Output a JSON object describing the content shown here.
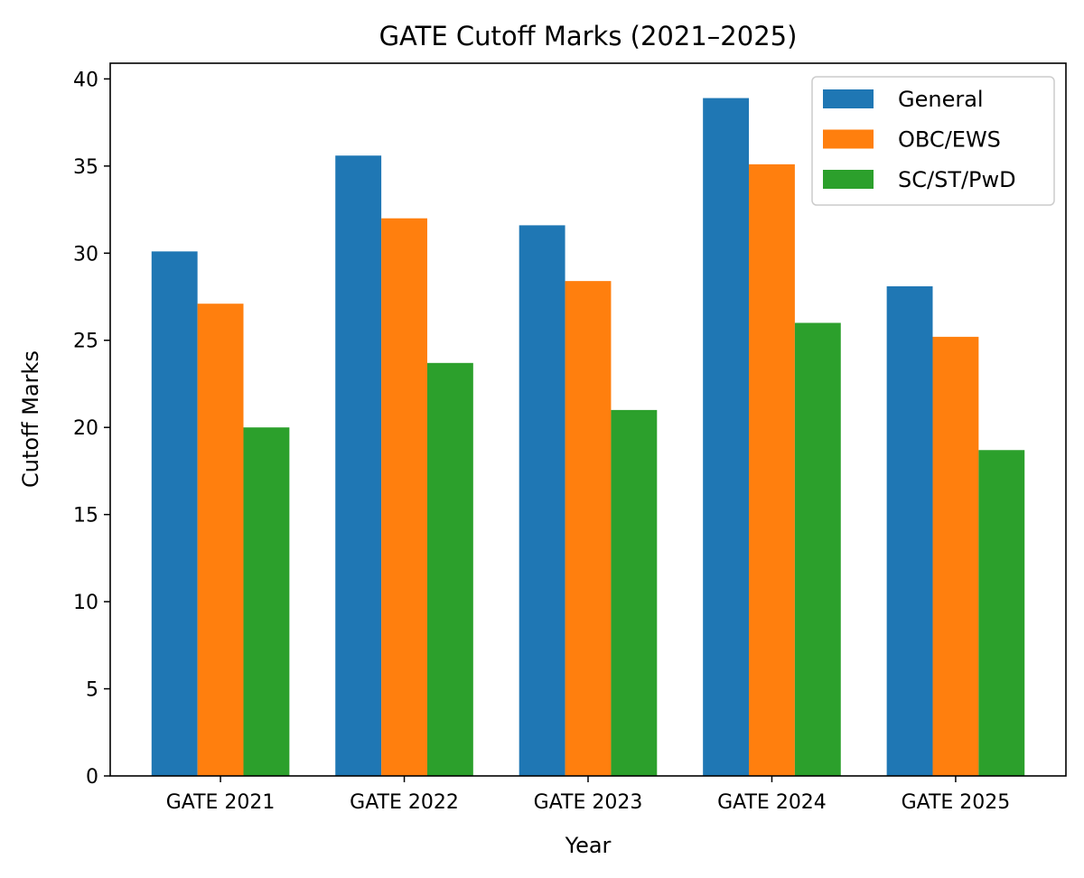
{
  "chart_data": {
    "type": "bar",
    "title": "GATE Cutoff Marks (2021–2025)",
    "xlabel": "Year",
    "ylabel": "Cutoff Marks",
    "categories": [
      "GATE 2021",
      "GATE 2022",
      "GATE 2023",
      "GATE 2024",
      "GATE 2025"
    ],
    "series": [
      {
        "name": "General",
        "color": "#1f77b4",
        "values": [
          30.1,
          35.6,
          31.6,
          38.9,
          28.1
        ]
      },
      {
        "name": "OBC/EWS",
        "color": "#ff7f0e",
        "values": [
          27.1,
          32.0,
          28.4,
          35.1,
          25.2
        ]
      },
      {
        "name": "SC/ST/PwD",
        "color": "#2ca02c",
        "values": [
          20.0,
          23.7,
          21.0,
          26.0,
          18.7
        ]
      }
    ],
    "ylim": [
      0,
      40.9
    ],
    "yticks": [
      0,
      5,
      10,
      15,
      20,
      25,
      30,
      35,
      40
    ],
    "grid": false,
    "legend_position": "top-right"
  }
}
